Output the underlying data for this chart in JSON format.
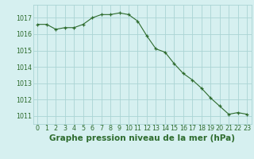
{
  "x": [
    0,
    1,
    2,
    3,
    4,
    5,
    6,
    7,
    8,
    9,
    10,
    11,
    12,
    13,
    14,
    15,
    16,
    17,
    18,
    19,
    20,
    21,
    22,
    23
  ],
  "y": [
    1016.6,
    1016.6,
    1016.3,
    1016.4,
    1016.4,
    1016.6,
    1017.0,
    1017.2,
    1017.2,
    1017.3,
    1017.2,
    1016.8,
    1015.9,
    1015.1,
    1014.9,
    1014.2,
    1013.6,
    1013.2,
    1012.7,
    1012.1,
    1011.6,
    1011.1,
    1011.2,
    1011.1
  ],
  "line_color": "#2d6b2d",
  "marker_color": "#2d6b2d",
  "bg_color": "#d6f0f0",
  "grid_color": "#aad4d4",
  "title": "Graphe pression niveau de la mer (hPa)",
  "xlim": [
    -0.5,
    23.5
  ],
  "ylim": [
    1010.5,
    1017.8
  ],
  "yticks": [
    1011,
    1012,
    1013,
    1014,
    1015,
    1016,
    1017
  ],
  "xticks": [
    0,
    1,
    2,
    3,
    4,
    5,
    6,
    7,
    8,
    9,
    10,
    11,
    12,
    13,
    14,
    15,
    16,
    17,
    18,
    19,
    20,
    21,
    22,
    23
  ],
  "title_fontsize": 7.5,
  "tick_fontsize": 5.8,
  "title_color": "#2d6b2d",
  "tick_color": "#2d6b2d"
}
